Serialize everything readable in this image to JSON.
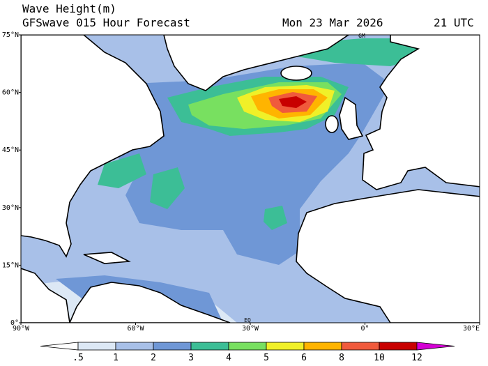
{
  "header": {
    "title": "Wave Height(m)",
    "subtitle": "GFSwave 015 Hour Forecast",
    "date": "Mon 23 Mar 2026",
    "time": "21 UTC"
  },
  "map": {
    "lat_labels": [
      "75°N",
      "60°N",
      "45°N",
      "30°N",
      "15°N",
      "0°"
    ],
    "lon_labels": [
      "90°W",
      "60°W",
      "30°W",
      "0°",
      "30°E"
    ],
    "markers": [
      "GM",
      "EQ"
    ]
  },
  "colorbar": {
    "labels": [
      ".5",
      "1",
      "2",
      "3",
      "4",
      "5",
      "6",
      "8",
      "10",
      "12"
    ],
    "colors": [
      "#ffffff",
      "#dce8f5",
      "#a8c0e8",
      "#6f97d6",
      "#3cbe96",
      "#78e060",
      "#f0f028",
      "#ffb400",
      "#f05a3c",
      "#c80000",
      "#d400d4"
    ]
  }
}
